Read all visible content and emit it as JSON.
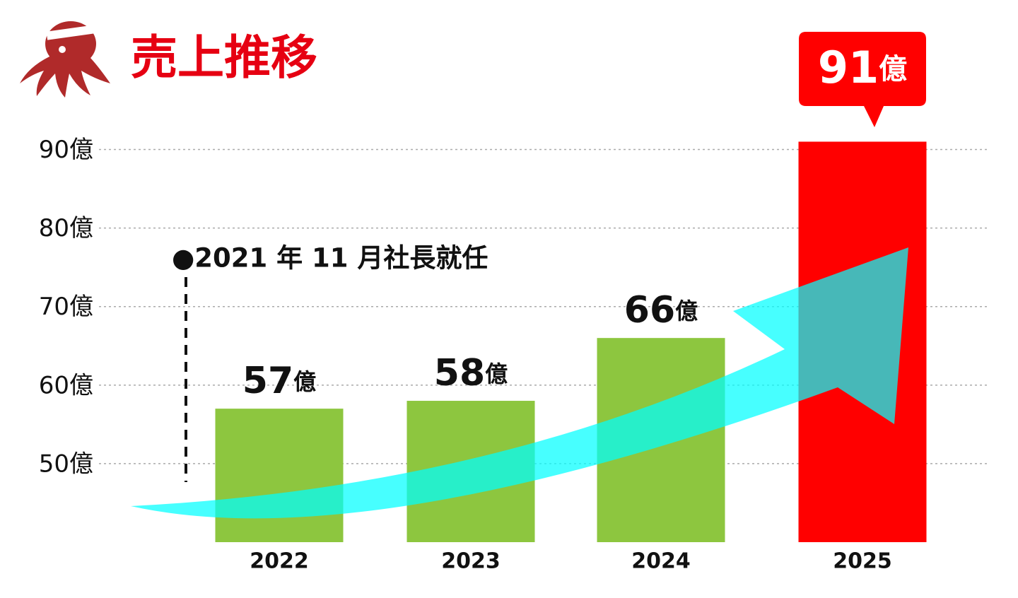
{
  "chart_data": {
    "type": "bar",
    "title": "売上推移",
    "annotation": "●2021 年 11 月社長就任",
    "categories": [
      "2022",
      "2023",
      "2024",
      "2025"
    ],
    "values": [
      57,
      58,
      66,
      91
    ],
    "value_labels": [
      "57億",
      "58億",
      "66億",
      "91億"
    ],
    "colors": [
      "#8dc63f",
      "#8dc63f",
      "#8dc63f",
      "#ff0000"
    ],
    "ylim": [
      40,
      95
    ],
    "yticks": [
      {
        "value": 50,
        "label": "50億"
      },
      {
        "value": 60,
        "label": "60億"
      },
      {
        "value": 70,
        "label": "70億"
      },
      {
        "value": 80,
        "label": "80億"
      },
      {
        "value": 90,
        "label": "90億"
      }
    ],
    "grid": true
  }
}
